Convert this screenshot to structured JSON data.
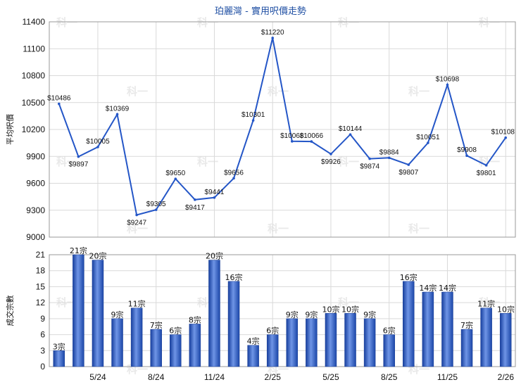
{
  "title": "珀麗灣 - 實用呎價走勢",
  "watermark": "科一",
  "chart_data": [
    {
      "type": "line",
      "ylabel": "平均呎價",
      "ylim": [
        9000,
        11400
      ],
      "yticks": [
        9000,
        9300,
        9600,
        9900,
        10200,
        10500,
        10800,
        11100,
        11400
      ],
      "xtick_labels": [
        "5/24",
        "8/24",
        "11/24",
        "2/25",
        "5/25",
        "8/25",
        "11/25",
        "2/26"
      ],
      "values": [
        10486,
        9897,
        10005,
        10369,
        9247,
        9305,
        9650,
        9417,
        9441,
        9656,
        10301,
        11220,
        10068,
        10066,
        9926,
        10144,
        9874,
        9884,
        9807,
        10051,
        10698,
        9908,
        9801,
        10108
      ],
      "labels": [
        "$10486",
        "$9897",
        "$10005",
        "$10369",
        "$9247",
        "$9305",
        "$9650",
        "$9417",
        "$9441",
        "$9656",
        "$10301",
        "$11220",
        "$10068",
        "$10066",
        "$9926",
        "$10144",
        "$9874",
        "$9884",
        "$9807",
        "$10051",
        "$10698",
        "$9908",
        "$9801",
        "$10108"
      ],
      "color": "#2456c7"
    },
    {
      "type": "bar",
      "ylabel": "成交宗數",
      "ylim": [
        0,
        21
      ],
      "yticks": [
        0,
        3,
        6,
        9,
        12,
        15,
        18,
        21
      ],
      "xtick_labels": [
        "5/24",
        "8/24",
        "11/24",
        "2/25",
        "5/25",
        "8/25",
        "11/25",
        "2/26"
      ],
      "values": [
        3,
        21,
        20,
        9,
        11,
        7,
        6,
        8,
        20,
        16,
        4,
        6,
        9,
        9,
        10,
        10,
        9,
        6,
        16,
        14,
        14,
        7,
        11,
        10
      ],
      "labels": [
        "3宗",
        "21宗",
        "20宗",
        "9宗",
        "11宗",
        "7宗",
        "6宗",
        "8宗",
        "20宗",
        "16宗",
        "4宗",
        "6宗",
        "9宗",
        "9宗",
        "10宗",
        "10宗",
        "9宗",
        "6宗",
        "16宗",
        "14宗",
        "14宗",
        "7宗",
        "11宗",
        "10宗"
      ],
      "color": "#2d5bc4"
    }
  ]
}
